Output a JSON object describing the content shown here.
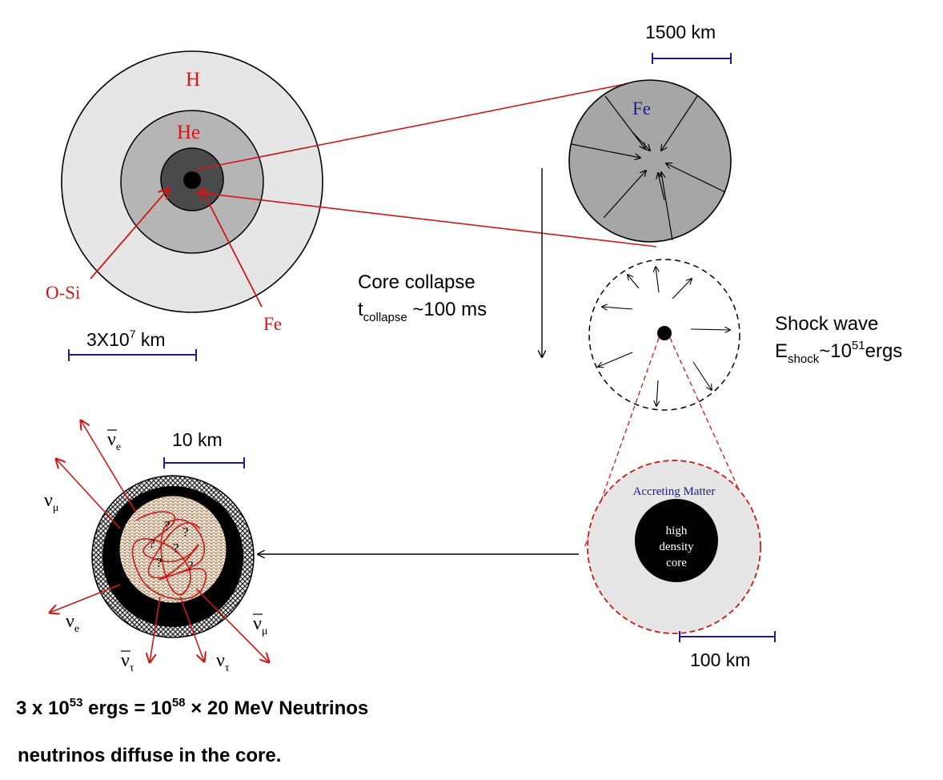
{
  "star": {
    "h_label": "H",
    "he_label": "He",
    "osi_label": "O-Si",
    "fe_label": "Fe",
    "scale_value": "3X10",
    "scale_exp": "7",
    "scale_unit": " km"
  },
  "iron_core": {
    "fe_label": "Fe",
    "scale_label": "1500 km"
  },
  "collapse": {
    "title": "Core collapse",
    "t_symbol": "t",
    "t_sub": "collapse",
    "t_value": " ~100 ms"
  },
  "shock": {
    "title": "Shock wave",
    "e_symbol": "E",
    "e_sub": "shock",
    "e_value": "~10",
    "e_exp": "51",
    "e_unit": "ergs"
  },
  "accretion": {
    "label": "Accreting Matter",
    "core_line1": "high",
    "core_line2": "density",
    "core_line3": "core",
    "scale_label": "100 km"
  },
  "neutrino_core": {
    "scale_label": "10 km",
    "nu_e_bar": "e",
    "nu_mu": "μ",
    "nu_e": "e",
    "nu_tau_bar": "τ",
    "nu_tau": "τ",
    "nu_mu_bar": "μ",
    "nu_symbol": "ν",
    "question_mark": "?"
  },
  "footer": {
    "energy_a": "3 x 10",
    "energy_a_exp": "53",
    "energy_b": " ergs = 10",
    "energy_b_exp": "58",
    "energy_c": " × 20 MeV Neutrinos",
    "diffuse": "neutrinos diffuse in the core."
  },
  "colors": {
    "shell_h": "#e6e6e6",
    "shell_he": "#b5b5b5",
    "shell_osi": "#4a4a4a",
    "iron_core": "#a6a6a6",
    "red": "#d01818",
    "blue": "#1c1c8c"
  }
}
